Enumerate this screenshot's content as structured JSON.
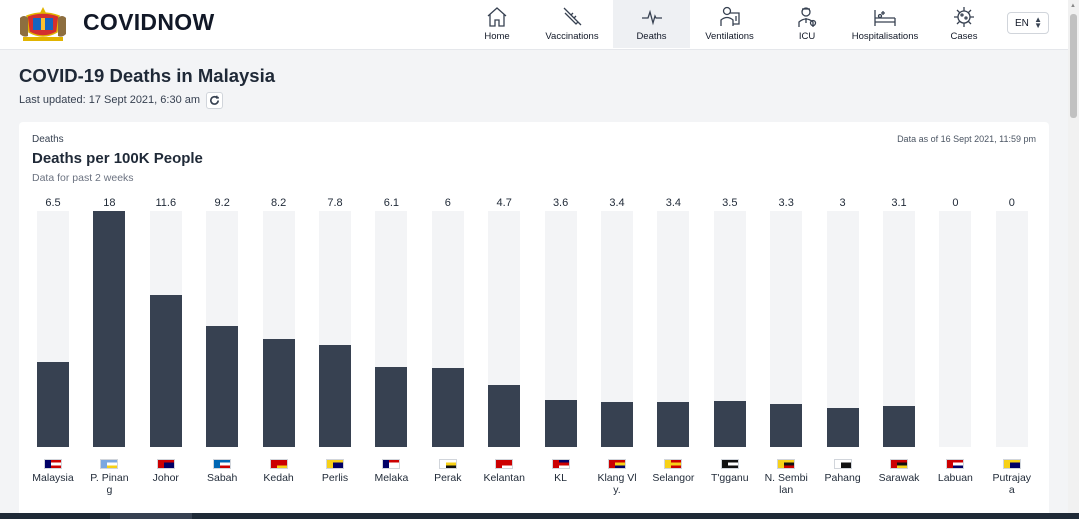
{
  "header": {
    "brand": "COVIDNOW",
    "nav": [
      {
        "label": "Home",
        "icon": "home-icon",
        "active": false,
        "width": 68
      },
      {
        "label": "Vaccinations",
        "icon": "syringe-icon",
        "active": false,
        "width": 82
      },
      {
        "label": "Deaths",
        "icon": "pulse-icon",
        "active": true,
        "width": 77
      },
      {
        "label": "Ventilations",
        "icon": "ventilator-icon",
        "active": false,
        "width": 79
      },
      {
        "label": "ICU",
        "icon": "doctor-icon",
        "active": false,
        "width": 76
      },
      {
        "label": "Hospitalisations",
        "icon": "hospital-bed-icon",
        "active": false,
        "width": 80
      },
      {
        "label": "Cases",
        "icon": "virus-icon",
        "active": false,
        "width": 78
      }
    ],
    "language": "EN"
  },
  "page": {
    "title": "COVID-19 Deaths in Malaysia",
    "last_updated": "Last updated: 17 Sept 2021, 6:30 am"
  },
  "card": {
    "kicker": "Deaths",
    "as_of": "Data as of 16 Sept 2021, 11:59 pm",
    "title": "Deaths per 100K People",
    "subtitle": "Data for past 2 weeks"
  },
  "chart_data": {
    "type": "bar",
    "title": "Deaths per 100K People",
    "categories": [
      "Malaysia",
      "P. Pinang",
      "Johor",
      "Sabah",
      "Kedah",
      "Perlis",
      "Melaka",
      "Perak",
      "Kelantan",
      "KL",
      "Klang Valley",
      "Selangor",
      "T'gganu",
      "N. Sembilan",
      "Pahang",
      "Sarawak",
      "Labuan",
      "Putrajaya"
    ],
    "labels": [
      "Malaysia",
      "P. Pinan g",
      "Johor",
      "Sabah",
      "Kedah",
      "Perlis",
      "Melaka",
      "Perak",
      "Kelantan",
      "KL",
      "Klang Vl y.",
      "Selangor",
      "T'gganu",
      "N. Sembi lan",
      "Pahang",
      "Sarawak",
      "Labuan",
      "Putrajay a"
    ],
    "values": [
      6.5,
      18,
      11.6,
      9.2,
      8.2,
      7.8,
      6.1,
      6,
      4.7,
      3.6,
      3.4,
      3.4,
      3.5,
      3.3,
      3,
      3.1,
      0,
      0
    ],
    "value_labels": [
      "6.5",
      "18",
      "11.6",
      "9.2",
      "8.2",
      "7.8",
      "6.1",
      "6",
      "4.7",
      "3.6",
      "3.4",
      "3.4",
      "3.5",
      "3.3",
      "3",
      "3.1",
      "0",
      "0"
    ],
    "ylim": [
      0,
      18
    ],
    "bar_color": "#374151",
    "track_color": "#f3f4f6"
  }
}
